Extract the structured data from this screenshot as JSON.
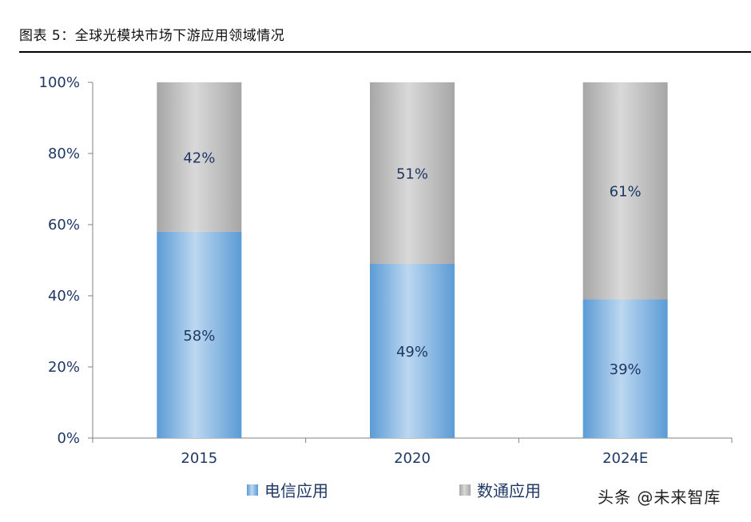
{
  "header": {
    "title": "图表 5：全球光模块市场下游应用领域情况"
  },
  "watermark": {
    "text": "头条 @未来智库"
  },
  "chart_data": {
    "type": "bar",
    "stacked": true,
    "percent": true,
    "categories": [
      "2015",
      "2020",
      "2024E"
    ],
    "series": [
      {
        "name": "电信应用",
        "values": [
          58,
          49,
          39
        ],
        "labels": [
          "58%",
          "49%",
          "39%"
        ],
        "color": "#5b9bd5"
      },
      {
        "name": "数通应用",
        "values": [
          42,
          51,
          61
        ],
        "labels": [
          "42%",
          "51%",
          "61%"
        ],
        "color": "#a6a6a6"
      }
    ],
    "ylim": [
      0,
      100
    ],
    "yticks": [
      "0%",
      "20%",
      "40%",
      "60%",
      "80%",
      "100%"
    ],
    "xlabel": "",
    "ylabel": "",
    "grid": false,
    "legend_position": "bottom"
  }
}
